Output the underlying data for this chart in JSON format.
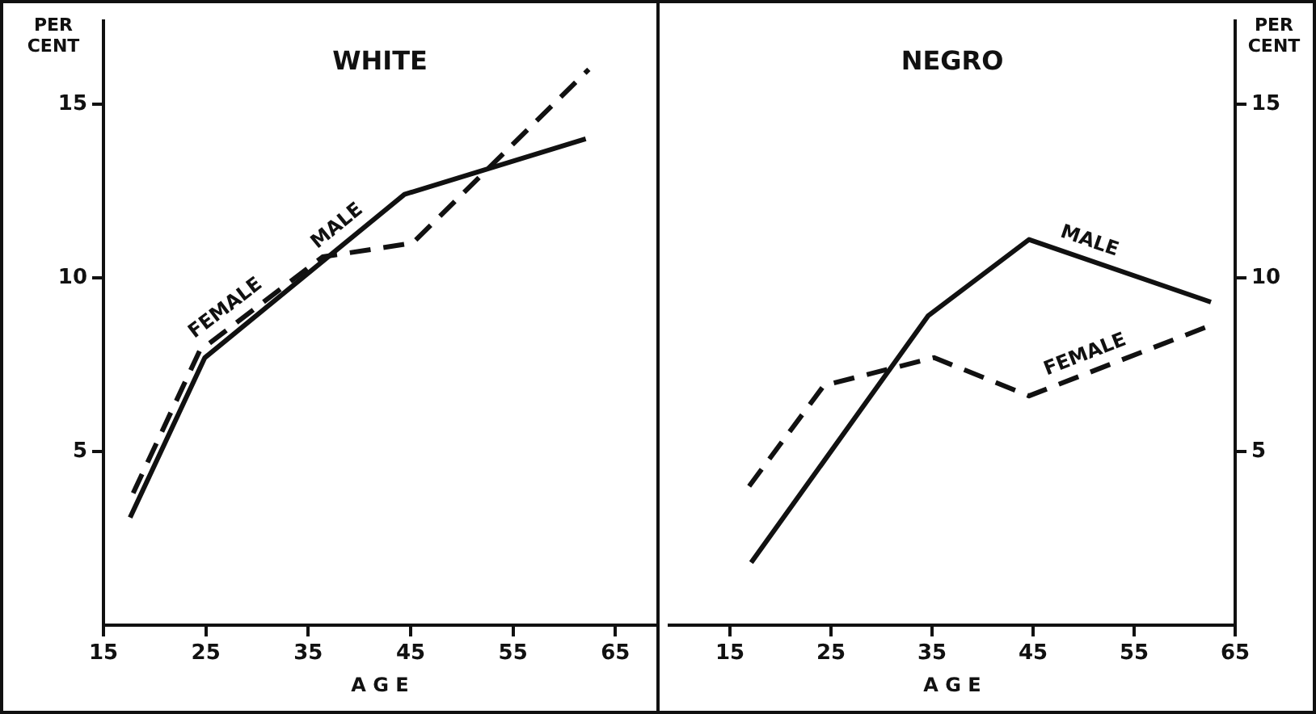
{
  "chart_data": [
    {
      "type": "line",
      "title": "WHITE",
      "xlabel": "A G E",
      "ylabel": "PER CENT",
      "xlim": [
        15,
        69
      ],
      "xticks": [
        15,
        25,
        35,
        45,
        55,
        65
      ],
      "ylim": [
        0,
        17.4
      ],
      "yticks": [
        5,
        10,
        15
      ],
      "grid": false,
      "legend": false,
      "marker": "none",
      "series": [
        {
          "name": "MALE",
          "color": "#111111",
          "line_style": "solid",
          "x": [
            17.6,
            24.9,
            44.4,
            62.1
          ],
          "values": [
            3.1,
            7.7,
            12.4,
            14.0
          ]
        },
        {
          "name": "FEMALE",
          "color": "#111111",
          "line_style": "dashed",
          "x": [
            17.9,
            24.4,
            36.4,
            45.2,
            62.4
          ],
          "values": [
            3.8,
            7.9,
            10.6,
            11.0,
            16.0
          ]
        }
      ]
    },
    {
      "type": "line",
      "title": "NEGRO",
      "xlabel": "A G E",
      "y2label": "PER CENT",
      "xlim": [
        9,
        65
      ],
      "xticks": [
        15,
        25,
        35,
        45,
        55,
        65
      ],
      "y2lim": [
        0,
        17.4
      ],
      "y2ticks": [
        5,
        10,
        15
      ],
      "grid": false,
      "legend": false,
      "marker": "none",
      "series": [
        {
          "name": "MALE",
          "color": "#111111",
          "line_style": "solid",
          "axis": "y2",
          "x": [
            17.1,
            34.6,
            44.6,
            62.6
          ],
          "values": [
            1.8,
            8.9,
            11.1,
            9.3
          ]
        },
        {
          "name": "FEMALE",
          "color": "#111111",
          "line_style": "dashed",
          "axis": "y2",
          "x": [
            16.9,
            24.3,
            35.2,
            44.6,
            62.3
          ],
          "values": [
            4.0,
            6.9,
            7.7,
            6.6,
            8.6
          ]
        }
      ]
    }
  ]
}
